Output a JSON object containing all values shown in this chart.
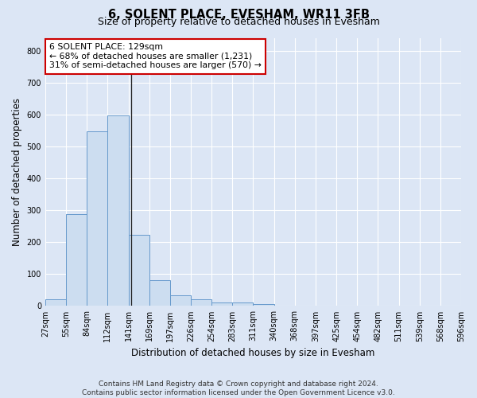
{
  "title": "6, SOLENT PLACE, EVESHAM, WR11 3FB",
  "subtitle": "Size of property relative to detached houses in Evesham",
  "xlabel": "Distribution of detached houses by size in Evesham",
  "ylabel": "Number of detached properties",
  "footer_line1": "Contains HM Land Registry data © Crown copyright and database right 2024.",
  "footer_line2": "Contains public sector information licensed under the Open Government Licence v3.0.",
  "bar_values": [
    22,
    289,
    547,
    598,
    223,
    80,
    33,
    22,
    12,
    10,
    5,
    0,
    0,
    0,
    0,
    0,
    0,
    0,
    0,
    0
  ],
  "bar_labels": [
    "27sqm",
    "55sqm",
    "84sqm",
    "112sqm",
    "141sqm",
    "169sqm",
    "197sqm",
    "226sqm",
    "254sqm",
    "283sqm",
    "311sqm",
    "340sqm",
    "368sqm",
    "397sqm",
    "425sqm",
    "454sqm",
    "482sqm",
    "511sqm",
    "539sqm",
    "568sqm",
    "596sqm"
  ],
  "bar_color": "#ccddf0",
  "bar_edge_color": "#6699cc",
  "background_color": "#dce6f5",
  "annotation_text": "6 SOLENT PLACE: 129sqm\n← 68% of detached houses are smaller (1,231)\n31% of semi-detached houses are larger (570) →",
  "annotation_box_color": "#ffffff",
  "annotation_box_edge_color": "#cc0000",
  "property_line_x": 3.65,
  "ylim": [
    0,
    840
  ],
  "yticks": [
    0,
    100,
    200,
    300,
    400,
    500,
    600,
    700,
    800
  ],
  "grid_color": "#ffffff",
  "title_fontsize": 10.5,
  "subtitle_fontsize": 9,
  "axis_label_fontsize": 8.5,
  "tick_fontsize": 7,
  "annotation_fontsize": 7.8,
  "footer_fontsize": 6.5
}
